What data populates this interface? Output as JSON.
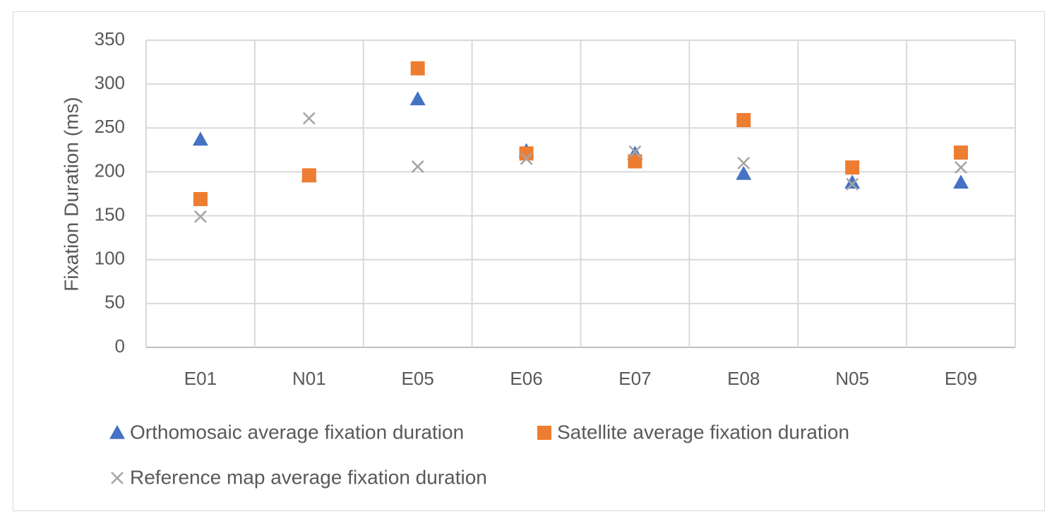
{
  "chart_data": {
    "type": "scatter",
    "title": "",
    "xlabel": "",
    "ylabel": "Fixation Duration (ms)",
    "ylim": [
      0,
      350
    ],
    "yticks": [
      0,
      50,
      100,
      150,
      200,
      250,
      300,
      350
    ],
    "grid": true,
    "categories": [
      "E01",
      "N01",
      "E05",
      "E06",
      "E07",
      "E08",
      "N05",
      "E09"
    ],
    "legend_position": "bottom",
    "series": [
      {
        "name": "Orthomosaic average fixation duration",
        "marker": "triangle",
        "color": "#4472c4",
        "values": [
          237,
          196,
          283,
          224,
          221,
          198,
          188,
          188
        ]
      },
      {
        "name": "Satellite average fixation duration",
        "marker": "square",
        "color": "#ed7d31",
        "values": [
          169,
          196,
          318,
          221,
          212,
          259,
          205,
          222
        ]
      },
      {
        "name": "Reference map average fixation duration",
        "marker": "x",
        "color": "#a5a5a5",
        "values": [
          149,
          261,
          206,
          215,
          223,
          210,
          186,
          205
        ]
      }
    ]
  }
}
